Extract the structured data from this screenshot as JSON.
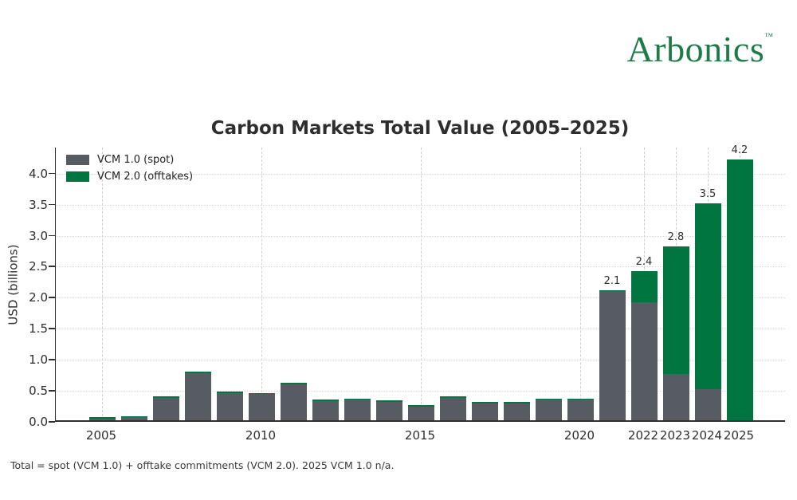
{
  "logo": {
    "text": "Arbonics",
    "trademark": "™",
    "color": "#1e7b47"
  },
  "footnote": "Total = spot (VCM 1.0) + offtake commitments (VCM 2.0). 2025 VCM 1.0 n/a.",
  "colors": {
    "vcm1_gray": "#575c63",
    "vcm2_green": "#007540",
    "axis": "#303030",
    "hgrid": "#d8d8d8",
    "vgrid": "#cfcfcf"
  },
  "chart_data": {
    "type": "bar",
    "stacked": true,
    "title": "Carbon Markets Total Value (2005–2025)",
    "xlabel": "",
    "ylabel": "USD (billions)",
    "ylim": [
      0,
      4.42
    ],
    "yticks": [
      "0.0",
      "0.5",
      "1.0",
      "1.5",
      "2.0",
      "2.5",
      "3.0",
      "3.5",
      "4.0"
    ],
    "grid": "both",
    "legend_position": "upper left",
    "years": [
      2005,
      2006,
      2007,
      2008,
      2009,
      2010,
      2011,
      2012,
      2013,
      2014,
      2015,
      2016,
      2017,
      2018,
      2019,
      2020,
      2021,
      2022,
      2023,
      2024,
      2025
    ],
    "xtick_years": [
      2005,
      2010,
      2015,
      2020,
      2022,
      2023,
      2024,
      2025
    ],
    "series": [
      {
        "name": "VCM 1.0 (spot)",
        "color": "#575c63",
        "values": [
          0.03,
          0.05,
          0.36,
          0.76,
          0.44,
          0.42,
          0.58,
          0.31,
          0.33,
          0.3,
          0.22,
          0.36,
          0.27,
          0.27,
          0.33,
          0.33,
          2.08,
          1.9,
          0.75,
          0.5,
          0
        ]
      },
      {
        "name": "VCM 2.0 (offtakes)",
        "color": "#007540",
        "values": [
          0.02,
          0.02,
          0.02,
          0.02,
          0.02,
          0.02,
          0.02,
          0.02,
          0.02,
          0.02,
          0.02,
          0.02,
          0.02,
          0.02,
          0.02,
          0.02,
          0.02,
          0.5,
          2.05,
          3.0,
          4.2
        ]
      }
    ],
    "total_labels": {
      "2021": "2.1",
      "2022": "2.4",
      "2023": "2.8",
      "2024": "3.5",
      "2025": "4.2"
    }
  }
}
